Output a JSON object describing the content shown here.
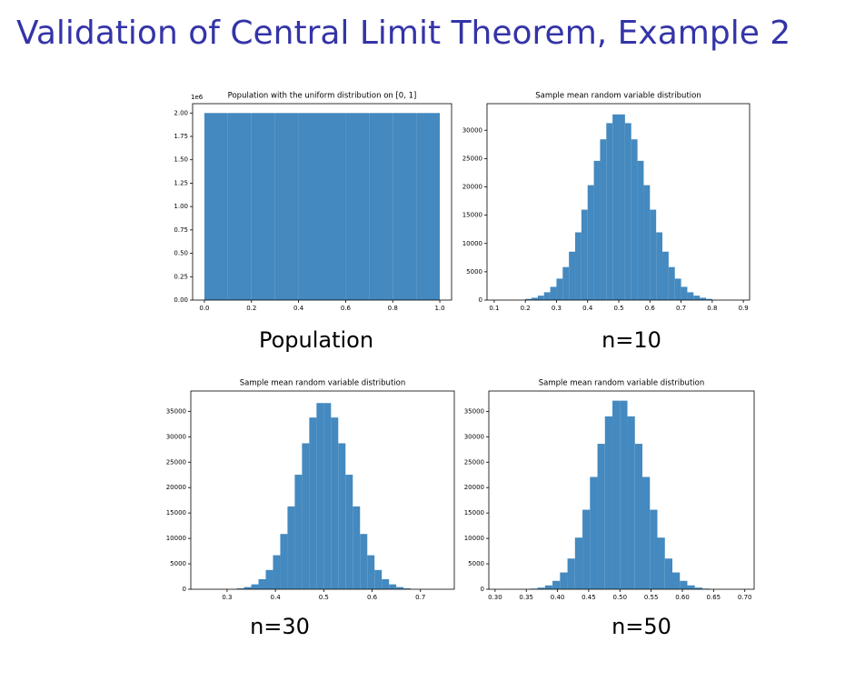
{
  "title": "Validation of Central Limit Theorem, Example 2",
  "captions": [
    "Population",
    "n=10",
    "n=30",
    "n=50"
  ],
  "chart_data": [
    {
      "type": "histogram",
      "title": "Population with the uniform distribution on [0, 1]",
      "color": "#4489bf",
      "bins": [
        0,
        0.1,
        0.2,
        0.3,
        0.4,
        0.5,
        0.6,
        0.7,
        0.8,
        0.9,
        1
      ],
      "counts": [
        2000000,
        2000000,
        2000000,
        2000000,
        2000000,
        2000000,
        2000000,
        2000000,
        2000000,
        2000000
      ],
      "xlim": [
        -0.05,
        1.05
      ],
      "ylim": [
        0,
        2100000
      ],
      "xticks": [
        {
          "value": 0,
          "label": "0.0"
        },
        0.2,
        0.4,
        0.6,
        0.8,
        {
          "value": 1,
          "label": "1.0"
        }
      ],
      "yticks": [
        {
          "value": 0,
          "label": "0.00"
        },
        {
          "value": 250000,
          "label": "0.25"
        },
        {
          "value": 500000,
          "label": "0.50"
        },
        {
          "value": 750000,
          "label": "0.75"
        },
        {
          "value": 1000000,
          "label": "1.00"
        },
        {
          "value": 1250000,
          "label": "1.25"
        },
        {
          "value": 1500000,
          "label": "1.50"
        },
        {
          "value": 1750000,
          "label": "1.75"
        },
        {
          "value": 2000000,
          "label": "2.00"
        }
      ],
      "y_offset_label": "1e6"
    },
    {
      "type": "histogram",
      "title": "Sample mean random variable distribution",
      "color": "#4489bf",
      "bins": [
        0.2,
        0.22,
        0.24,
        0.26,
        0.28,
        0.3,
        0.32,
        0.34,
        0.36,
        0.38,
        0.4,
        0.42,
        0.44,
        0.46,
        0.48,
        0.5,
        0.52,
        0.54,
        0.56,
        0.58,
        0.6,
        0.62,
        0.64,
        0.66,
        0.68,
        0.7,
        0.72,
        0.74,
        0.76,
        0.78,
        0.8
      ],
      "counts": [
        210,
        415,
        780,
        1380,
        2340,
        3790,
        5830,
        8550,
        11970,
        15970,
        20300,
        24600,
        28400,
        31260,
        32800,
        32800,
        31260,
        28400,
        24600,
        20300,
        15970,
        11970,
        8550,
        5830,
        3790,
        2340,
        1380,
        780,
        415,
        210
      ],
      "xlim": [
        0.077,
        0.92
      ],
      "ylim": [
        0,
        34700
      ],
      "xticks": [
        0.1,
        0.2,
        0.3,
        0.4,
        0.5,
        0.6,
        0.7,
        0.8,
        0.9
      ],
      "yticks": [
        0,
        5000,
        10000,
        15000,
        20000,
        25000,
        30000
      ]
    },
    {
      "type": "histogram",
      "title": "Sample mean random variable distribution",
      "color": "#4489bf",
      "bins": [
        0.32,
        0.335,
        0.35,
        0.365,
        0.38,
        0.395,
        0.41,
        0.425,
        0.44,
        0.455,
        0.47,
        0.485,
        0.5,
        0.515,
        0.53,
        0.545,
        0.56,
        0.575,
        0.59,
        0.605,
        0.62,
        0.635,
        0.65,
        0.665,
        0.68
      ],
      "counts": [
        175,
        425,
        960,
        1980,
        3790,
        6690,
        10870,
        16290,
        22530,
        28720,
        33780,
        36630,
        36630,
        33780,
        28720,
        22530,
        16290,
        10870,
        6690,
        3790,
        1980,
        960,
        425,
        175
      ],
      "xlim": [
        0.225,
        0.77
      ],
      "ylim": [
        0,
        39000
      ],
      "xticks": [
        0.3,
        0.4,
        0.5,
        0.6,
        0.7
      ],
      "yticks": [
        0,
        5000,
        10000,
        15000,
        20000,
        25000,
        30000,
        35000
      ]
    },
    {
      "type": "histogram",
      "title": "Sample mean random variable distribution",
      "color": "#4489bf",
      "bins": [
        0.356,
        0.368,
        0.38,
        0.392,
        0.404,
        0.416,
        0.428,
        0.44,
        0.452,
        0.464,
        0.476,
        0.488,
        0.5,
        0.512,
        0.524,
        0.536,
        0.548,
        0.56,
        0.572,
        0.584,
        0.596,
        0.608,
        0.62,
        0.632,
        0.644
      ],
      "counts": [
        125,
        320,
        760,
        1650,
        3300,
        6040,
        10160,
        15640,
        22090,
        28610,
        34010,
        37100,
        37100,
        34010,
        28610,
        22090,
        15640,
        10160,
        6040,
        3300,
        1650,
        760,
        320,
        125
      ],
      "xlim": [
        0.29,
        0.715
      ],
      "ylim": [
        0,
        39000
      ],
      "xticks": [
        {
          "value": 0.3,
          "label": "0.30"
        },
        0.35,
        {
          "value": 0.4,
          "label": "0.40"
        },
        0.45,
        {
          "value": 0.5,
          "label": "0.50"
        },
        0.55,
        {
          "value": 0.6,
          "label": "0.60"
        },
        0.65,
        {
          "value": 0.7,
          "label": "0.70"
        }
      ],
      "yticks": [
        0,
        5000,
        10000,
        15000,
        20000,
        25000,
        30000,
        35000
      ]
    }
  ]
}
